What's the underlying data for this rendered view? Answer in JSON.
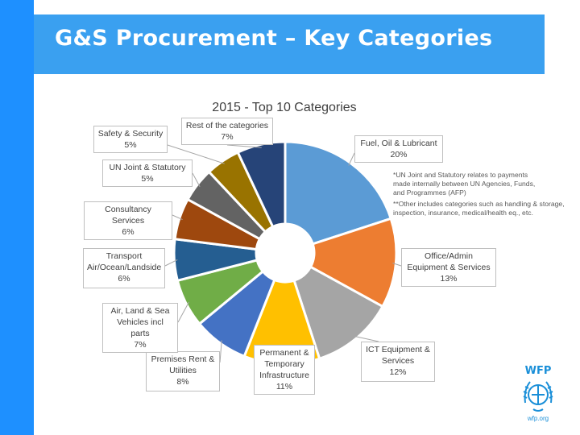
{
  "slide": {
    "title": "G&S Procurement – Key Categories"
  },
  "colors": {
    "left_bar": "#1e90ff",
    "banner": "#3aa0f0",
    "logo_blue": "#1a8fd8"
  },
  "chart_data": {
    "type": "pie",
    "variant": "donut",
    "title": "2015 - Top 10 Categories",
    "legend": "none",
    "slices": [
      {
        "label": "Fuel, Oil & Lubricant",
        "value": 20,
        "value_label": "20%",
        "color": "#5b9bd5"
      },
      {
        "label": "Office/Admin Equipment & Services",
        "value": 13,
        "value_label": "13%",
        "color": "#ed7d31"
      },
      {
        "label": "ICT Equipment & Services",
        "value": 12,
        "value_label": "12%",
        "color": "#a5a5a5"
      },
      {
        "label": "Permanent & Temporary Infrastructure",
        "value": 11,
        "value_label": "11%",
        "color": "#ffc000"
      },
      {
        "label": "Premises Rent & Utilities",
        "value": 8,
        "value_label": "8%",
        "color": "#4472c4"
      },
      {
        "label": "Air, Land & Sea Vehicles incl parts",
        "value": 7,
        "value_label": "7%",
        "color": "#70ad47"
      },
      {
        "label": "Transport Air/Ocean/Landside",
        "value": 6,
        "value_label": "6%",
        "color": "#255e91"
      },
      {
        "label": "Consultancy Services",
        "value": 6,
        "value_label": "6%",
        "color": "#9e480e"
      },
      {
        "label": "UN Joint & Statutory",
        "value": 5,
        "value_label": "5%",
        "color": "#636363"
      },
      {
        "label": "Safety & Security",
        "value": 5,
        "value_label": "5%",
        "color": "#997300"
      },
      {
        "label": "Rest of the categories",
        "value": 7,
        "value_label": "7%",
        "color": "#264478"
      }
    ],
    "notes": [
      "*UN Joint and Statutory relates to payments made internally between UN Agencies, Funds, and Programmes (AFP)",
      "**Other includes categories such as handling & storage, inspection, insurance, medical/health eq., etc."
    ]
  },
  "logo": {
    "name": "WFP",
    "url_text": "wfp.org"
  }
}
